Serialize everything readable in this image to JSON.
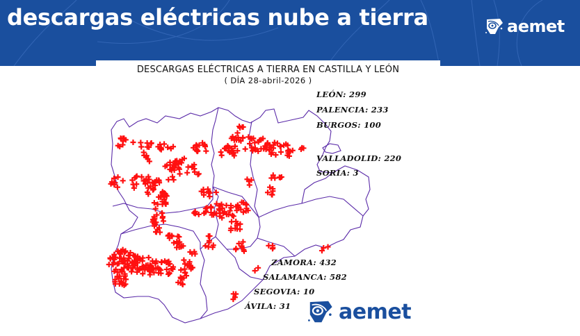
{
  "header": {
    "title": "descargas eléctricas nube a tierra",
    "logo_text": "aemet",
    "background_color": "#1a4f9e"
  },
  "map": {
    "title": "DESCARGAS ELÉCTRICAS A TIERRA EN CASTILLA Y LEÓN",
    "date_line": "( DÍA 28-abril-2026 )",
    "border_color": "#5a2aa8",
    "marker_color": "#ff0000",
    "marker_icon": "red-cross-marker-icon",
    "province_counts": [
      {
        "label": "LEÓN: 299",
        "province": "LEÓN",
        "count": 299
      },
      {
        "label": "PALENCIA: 233",
        "province": "PALENCIA",
        "count": 233
      },
      {
        "label": "BURGOS: 100",
        "province": "BURGOS",
        "count": 100
      },
      {
        "label": "VALLADOLID: 220",
        "province": "VALLADOLID",
        "count": 220
      },
      {
        "label": "SORIA: 3",
        "province": "SORIA",
        "count": 3
      },
      {
        "label": "ZAMORA: 432",
        "province": "ZAMORA",
        "count": 432
      },
      {
        "label": "SALAMANCA: 582",
        "province": "SALAMANCA",
        "count": 582
      },
      {
        "label": "SEGOVIA: 10",
        "province": "SEGOVIA",
        "count": 10
      },
      {
        "label": "ÁVILA: 31",
        "province": "ÁVILA",
        "count": 31
      }
    ],
    "footer_logo_text": "aemet"
  }
}
